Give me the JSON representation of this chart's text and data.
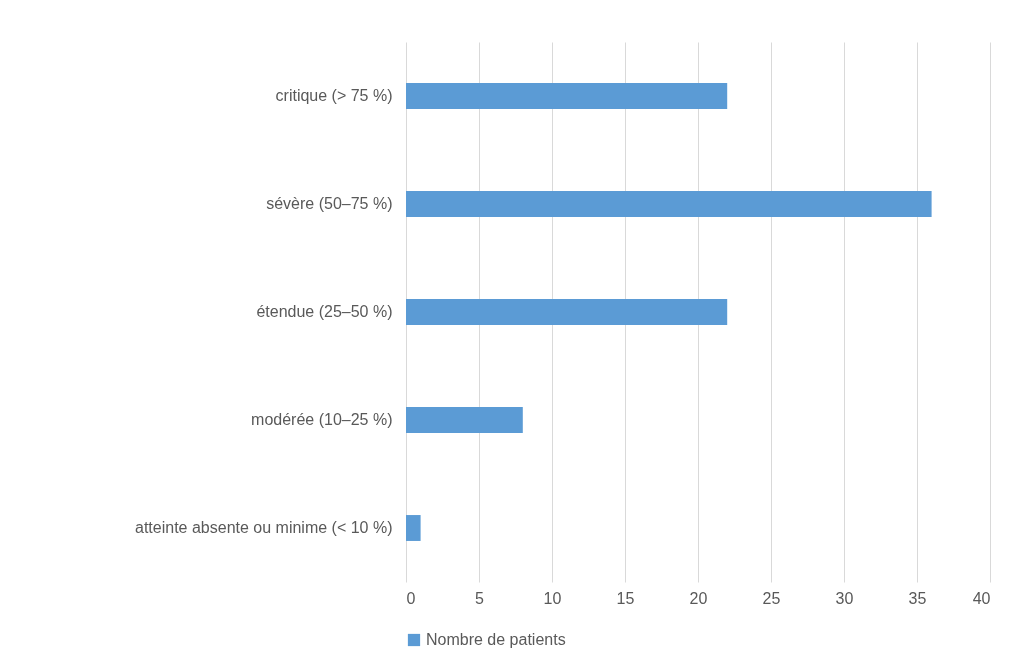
{
  "chart_data": {
    "type": "bar",
    "orientation": "horizontal",
    "categories": [
      "critique (> 75 %)",
      "sévère (50–75 %)",
      "étendue (25–50 %)",
      "modérée (10–25 %)",
      "atteinte absente ou minime (< 10 %)"
    ],
    "series": [
      {
        "name": "Nombre de patients",
        "color": "#5b9bd5",
        "values": [
          22,
          36,
          22,
          8,
          1
        ]
      }
    ],
    "xlim": [
      0,
      40
    ],
    "xticks": [
      0,
      5,
      10,
      15,
      20,
      25,
      30,
      35,
      40
    ],
    "grid": "x",
    "legend": "bottom"
  }
}
